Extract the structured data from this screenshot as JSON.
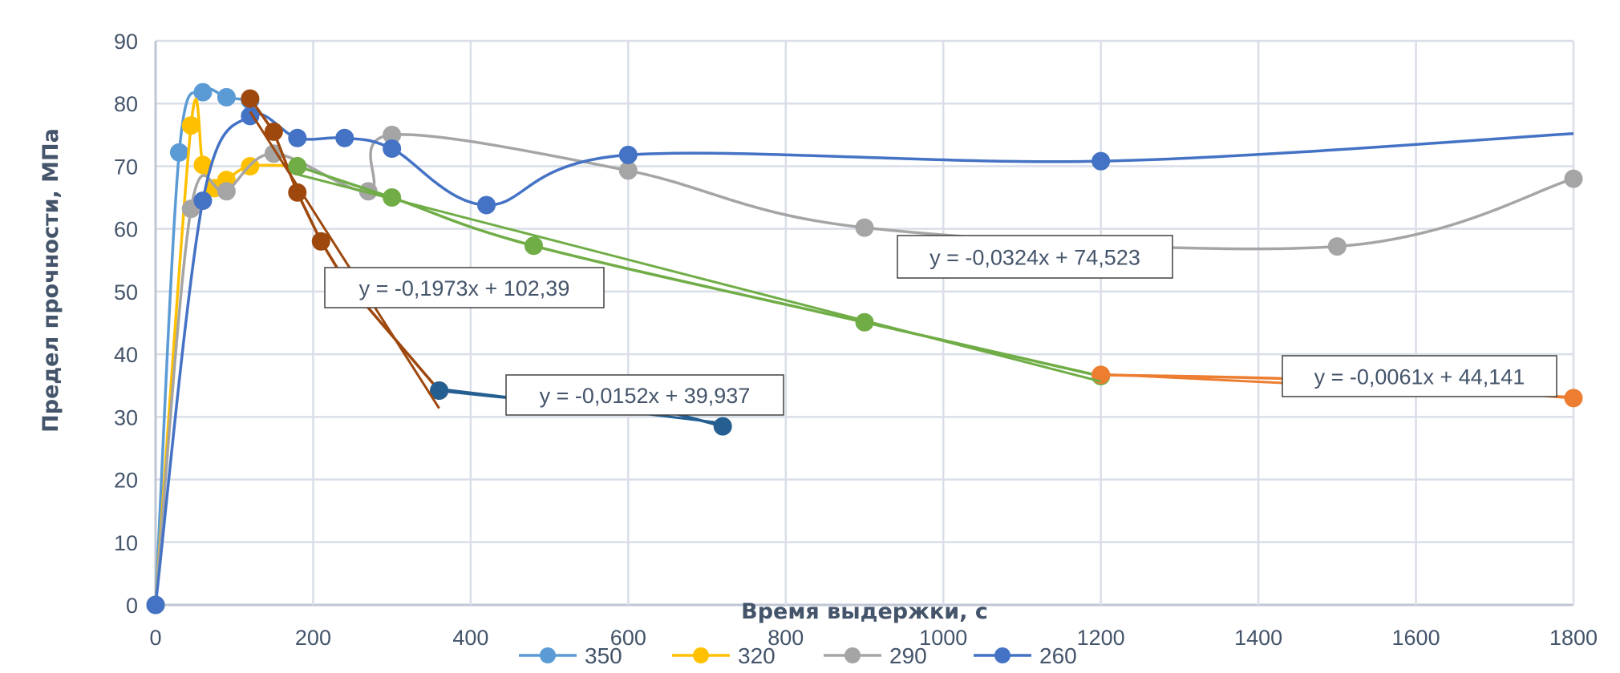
{
  "chart_data": {
    "type": "scatter",
    "xlabel": "Время выдержки, с",
    "ylabel": "Предел прочности, МПа",
    "xlim": [
      0,
      1800
    ],
    "ylim": [
      0,
      90
    ],
    "xticks": [
      "0",
      "200",
      "400",
      "600",
      "800",
      "1000",
      "1200",
      "1400",
      "1600",
      "1800"
    ],
    "yticks": [
      "0",
      "10",
      "20",
      "30",
      "40",
      "50",
      "60",
      "70",
      "80",
      "90"
    ],
    "grid": true,
    "legend_position": "bottom",
    "series": [
      {
        "name": "350",
        "color": "#5B9BD5",
        "smooth": true,
        "in_legend": true,
        "x": [
          0,
          30,
          60,
          90,
          120
        ],
        "y": [
          0,
          72.2,
          81.8,
          81,
          80.5
        ]
      },
      {
        "name": "320",
        "color": "#FFC000",
        "smooth": true,
        "in_legend": true,
        "x": [
          0,
          45,
          60,
          75,
          90,
          120,
          180
        ],
        "y": [
          0,
          76.5,
          70.2,
          66.5,
          67.8,
          70,
          70
        ]
      },
      {
        "name": "290",
        "color": "#A5A5A5",
        "smooth": true,
        "in_legend": true,
        "x": [
          0,
          45,
          90,
          150,
          270,
          300,
          600,
          900,
          1500,
          1800
        ],
        "y": [
          0,
          63.2,
          66,
          72,
          66,
          75,
          69.3,
          60.2,
          57.2,
          68
        ]
      },
      {
        "name": "260",
        "color": "#4472C4",
        "smooth": true,
        "in_legend": true,
        "x": [
          0,
          60,
          120,
          180,
          240,
          300,
          420,
          600,
          1200,
          1800
        ],
        "y": [
          0,
          64.5,
          78,
          74.5,
          74.5,
          72.8,
          63.8,
          71.8,
          70.8,
          75.2
        ],
        "markers_hidden_last": true
      },
      {
        "color": "#9E480E",
        "smooth": false,
        "in_legend": false,
        "x": [
          120,
          150,
          180,
          210,
          240,
          360
        ],
        "y": [
          80.8,
          75.5,
          65.8,
          58,
          51.8,
          34.2
        ],
        "trendline": {
          "slope": -0.1973,
          "intercept": 102.39,
          "x_range": [
            120,
            360
          ],
          "label": "y = -0,1973x + 102,39"
        }
      },
      {
        "color": "#255E91",
        "smooth": true,
        "in_legend": false,
        "x": [
          360,
          480,
          600,
          720
        ],
        "y": [
          34.2,
          32.7,
          32.1,
          28.5
        ],
        "trendline": {
          "slope": -0.0152,
          "intercept": 39.937,
          "x_range": [
            360,
            720
          ],
          "label": "y = -0,0152x + 39,937"
        }
      },
      {
        "color": "#70AD47",
        "smooth": true,
        "in_legend": false,
        "x": [
          180,
          300,
          480,
          900,
          1200
        ],
        "y": [
          70,
          65,
          57.3,
          45.1,
          36.5
        ],
        "trendline": {
          "slope": -0.0324,
          "intercept": 74.523,
          "x_range": [
            180,
            1200
          ],
          "label": "y = -0,0324x + 74,523"
        }
      },
      {
        "color": "#ED7D31",
        "smooth": true,
        "in_legend": false,
        "x": [
          1200,
          1500,
          1800
        ],
        "y": [
          36.7,
          35.8,
          33
        ],
        "trendline": {
          "slope": -0.0061,
          "intercept": 44.141,
          "x_range": [
            1200,
            1800
          ],
          "label": "y = -0,0061x + 44,141"
        }
      }
    ]
  }
}
